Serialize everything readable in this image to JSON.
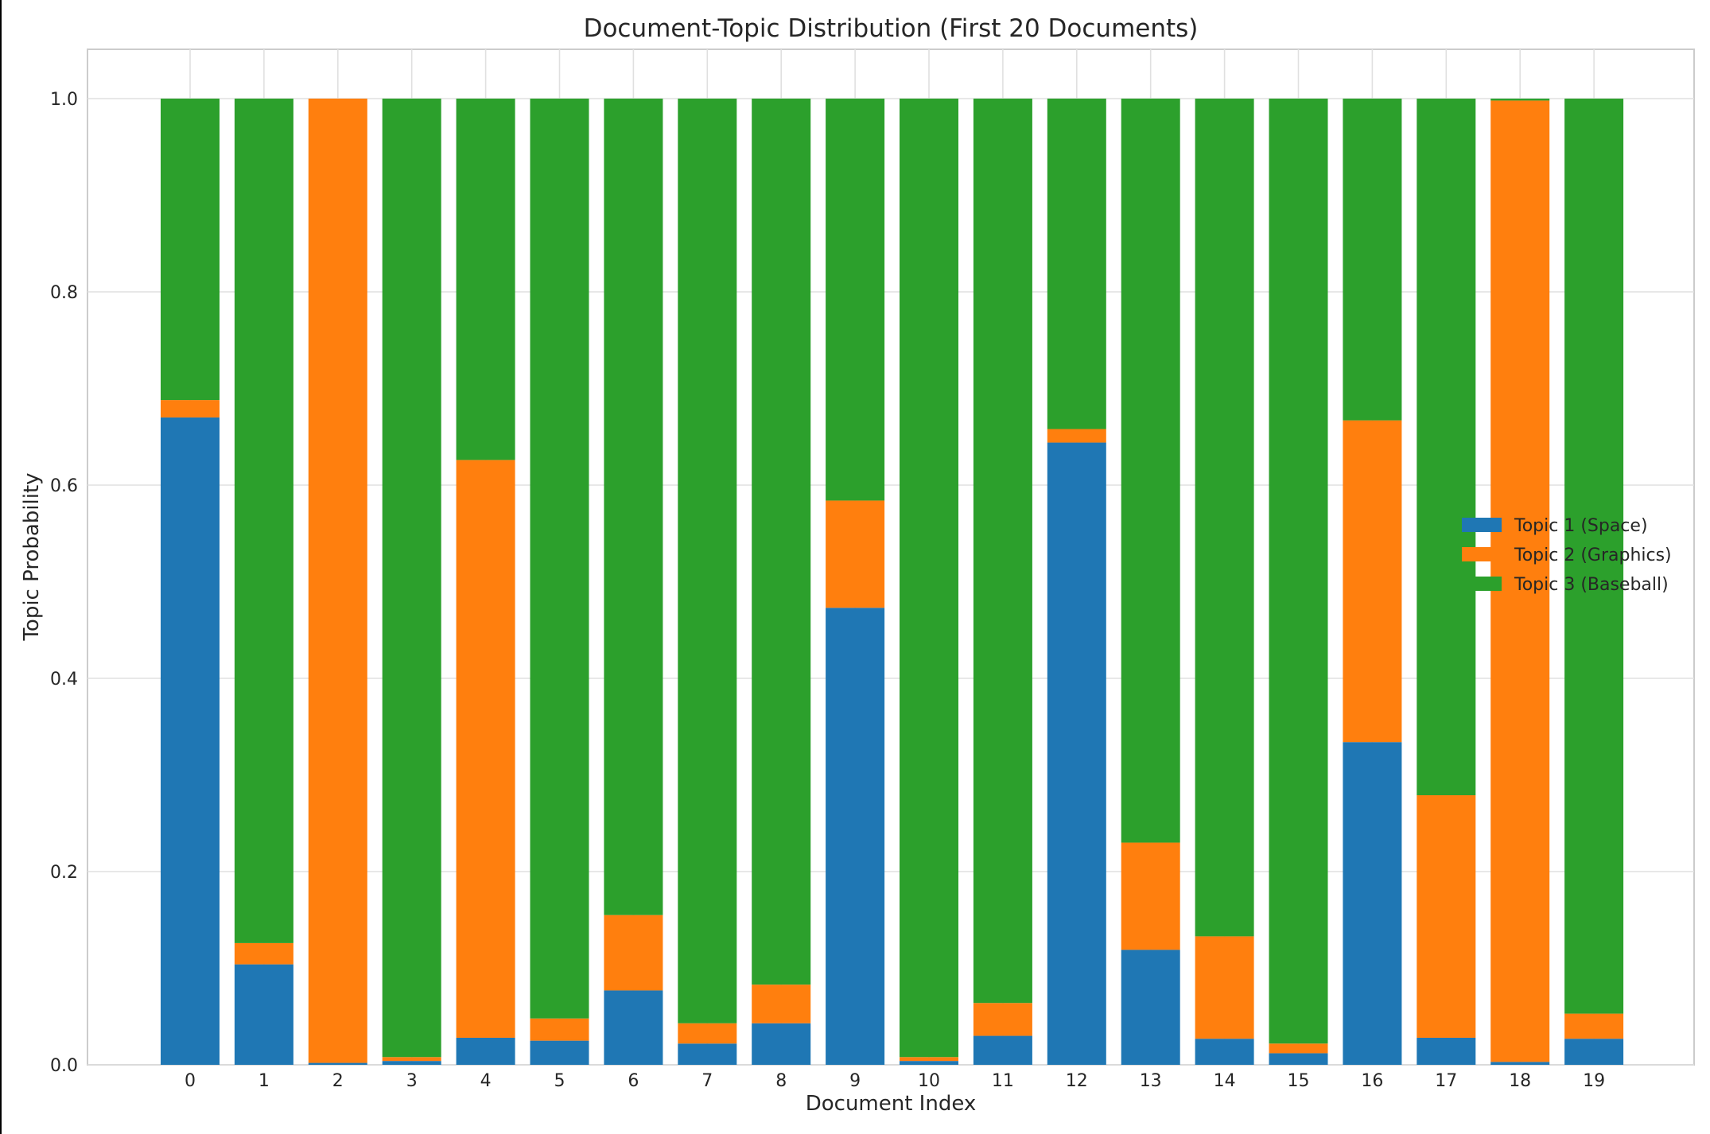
{
  "chart_data": {
    "type": "bar",
    "stacked": true,
    "title": "Document-Topic Distribution (First 20 Documents)",
    "xlabel": "Document Index",
    "ylabel": "Topic Probability",
    "ylim": [
      0,
      1.05
    ],
    "yticks": [
      "0.0",
      "0.2",
      "0.4",
      "0.6",
      "0.8",
      "1.0"
    ],
    "ytick_values": [
      0,
      0.2,
      0.4,
      0.6,
      0.8,
      1.0
    ],
    "grid": true,
    "legend_position": "center-right",
    "categories": [
      "0",
      "1",
      "2",
      "3",
      "4",
      "5",
      "6",
      "7",
      "8",
      "9",
      "10",
      "11",
      "12",
      "13",
      "14",
      "15",
      "16",
      "17",
      "18",
      "19"
    ],
    "series": [
      {
        "name": "Topic 1 (Space)",
        "color": "#1f77b4",
        "values": [
          0.67,
          0.104,
          0.002,
          0.004,
          0.028,
          0.025,
          0.077,
          0.022,
          0.043,
          0.473,
          0.004,
          0.03,
          0.644,
          0.119,
          0.027,
          0.012,
          0.334,
          0.028,
          0.003,
          0.027
        ]
      },
      {
        "name": "Topic 2 (Graphics)",
        "color": "#ff7f0e",
        "values": [
          0.018,
          0.022,
          0.998,
          0.004,
          0.598,
          0.023,
          0.078,
          0.021,
          0.04,
          0.111,
          0.004,
          0.034,
          0.014,
          0.111,
          0.106,
          0.01,
          0.333,
          0.251,
          0.995,
          0.026
        ]
      },
      {
        "name": "Topic 3 (Baseball)",
        "color": "#2ca02c",
        "values": [
          0.312,
          0.874,
          0.0,
          0.992,
          0.374,
          0.952,
          0.845,
          0.957,
          0.917,
          0.416,
          0.992,
          0.936,
          0.342,
          0.77,
          0.867,
          0.978,
          0.333,
          0.721,
          0.002,
          0.947
        ]
      }
    ]
  }
}
